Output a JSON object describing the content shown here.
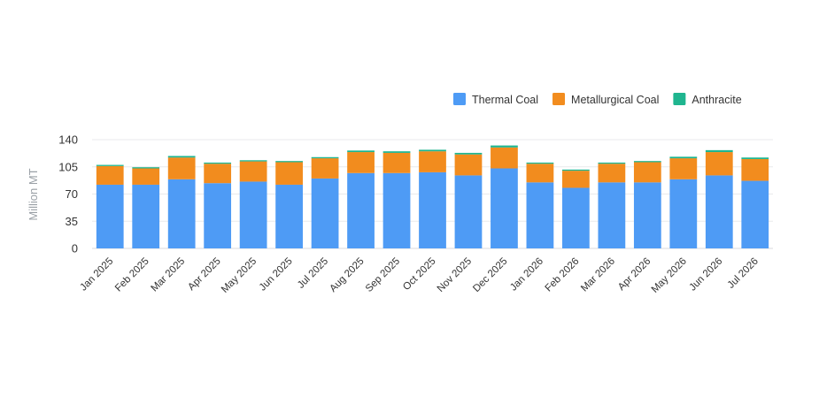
{
  "chart_data": {
    "type": "bar",
    "stacked": true,
    "ylabel": "Million MT",
    "ylim": [
      0,
      140
    ],
    "yticks": [
      0,
      35,
      70,
      105,
      140
    ],
    "grid": true,
    "legend_position": "top-right",
    "categories": [
      "Jan 2025",
      "Feb 2025",
      "Mar 2025",
      "Apr 2025",
      "May 2025",
      "Jun 2025",
      "Jul 2025",
      "Aug 2025",
      "Sep 2025",
      "Oct 2025",
      "Nov 2025",
      "Dec 2025",
      "Jan 2026",
      "Feb 2026",
      "Mar 2026",
      "Apr 2026",
      "May 2026",
      "Jun 2026",
      "Jul 2026"
    ],
    "series": [
      {
        "name": "Thermal Coal",
        "color": "#4e9bf5",
        "values": [
          82,
          82,
          89,
          84,
          86,
          82,
          90,
          97,
          97,
          98,
          94,
          103,
          85,
          78,
          85,
          85,
          89,
          94,
          87
        ]
      },
      {
        "name": "Metallurgical Coal",
        "color": "#f28c1e",
        "values": [
          24,
          21,
          28,
          25,
          26,
          29,
          26,
          27,
          26,
          27,
          27,
          27,
          24,
          22,
          24,
          26,
          27,
          30,
          28
        ]
      },
      {
        "name": "Anthracite",
        "color": "#1fb58f",
        "values": [
          1.5,
          1.5,
          2,
          1.5,
          1.5,
          1.5,
          1.5,
          2,
          2,
          2,
          2,
          2.5,
          1.5,
          1.5,
          1.5,
          1.5,
          2,
          2.5,
          2
        ]
      }
    ]
  }
}
